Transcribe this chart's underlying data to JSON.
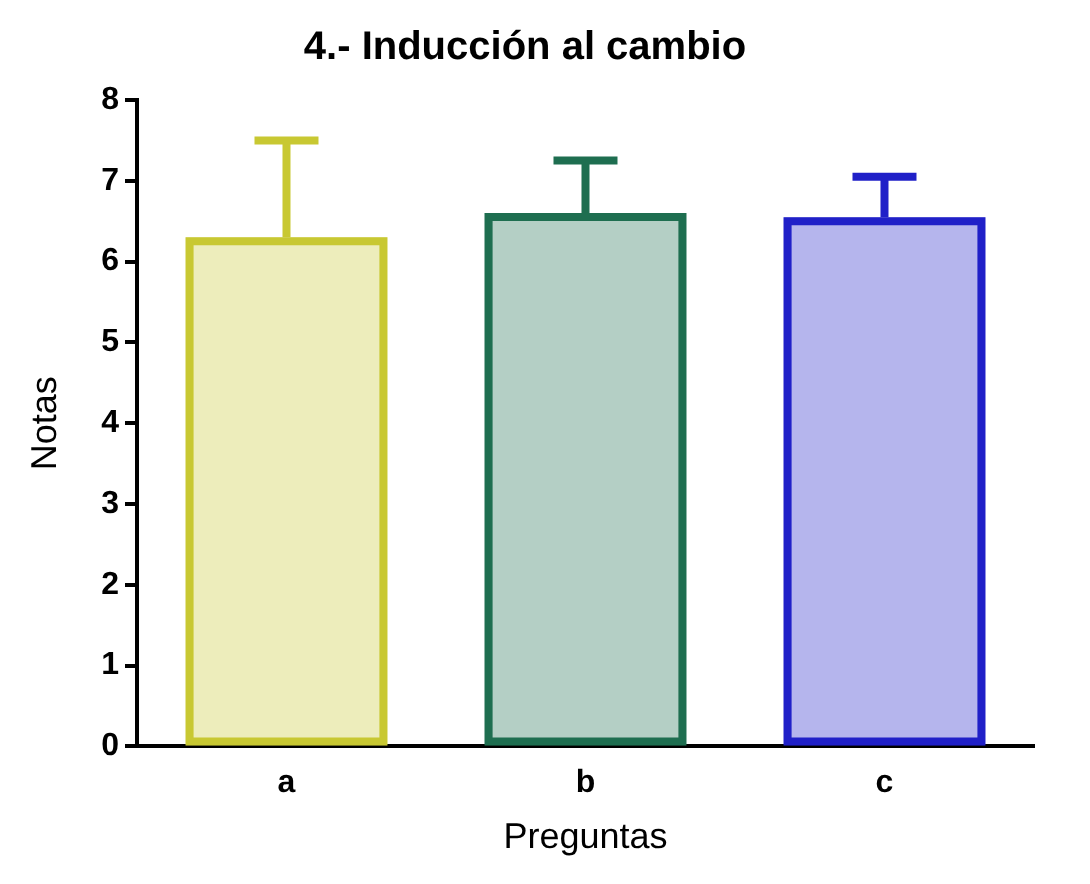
{
  "chart_data": {
    "type": "bar",
    "title": "4.- Inducción al cambio",
    "xlabel": "Preguntas",
    "ylabel": "Notas",
    "categories": [
      "a",
      "b",
      "c"
    ],
    "values": [
      6.3,
      6.6,
      6.55
    ],
    "errors": [
      [
        6.3,
        7.5
      ],
      [
        6.6,
        7.25
      ],
      [
        6.55,
        7.05
      ]
    ],
    "colors": [
      "#c8c832",
      "#1e6e50",
      "#2020c8"
    ],
    "ylim": [
      0,
      8
    ],
    "yticks": [
      0,
      1,
      2,
      3,
      4,
      5,
      6,
      7,
      8
    ],
    "grid": false,
    "legend": false
  }
}
